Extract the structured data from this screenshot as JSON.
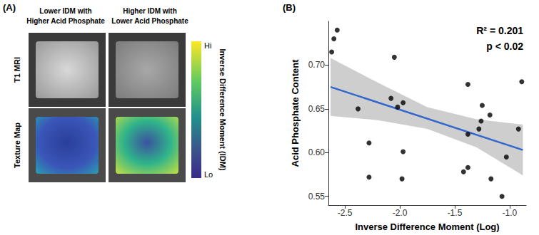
{
  "panel_a": {
    "label": "(A)",
    "columns": [
      [
        "Lower IDM with",
        "Higher Acid Phosphate"
      ],
      [
        "Higher IDM with",
        "Lower Acid Phosphate"
      ]
    ],
    "rows": [
      "T1 MRI",
      "Texture Map"
    ],
    "colorbar": {
      "title": "Inverse Difference Moment (IDM)",
      "high": "Hi",
      "low": "Lo"
    }
  },
  "chart_data": {
    "type": "scatter",
    "panel_label": "(B)",
    "x_label": "Inverse Difference Moment (Log)",
    "y_label": "Acid Phosphate Content",
    "annotations": [
      "R² = 0.201",
      "p < 0.02"
    ],
    "xlim": [
      -2.65,
      -0.85
    ],
    "xticks": [
      -2.5,
      {
        "value": -2,
        "label": "-2.0"
      },
      -1.5,
      {
        "value": -1,
        "label": "-1.0"
      }
    ],
    "ylim": [
      0.54,
      0.75
    ],
    "yticks": [
      0.55,
      {
        "value": 0.6,
        "label": "0.60"
      },
      0.65,
      {
        "value": 0.7,
        "label": "0.70"
      }
    ],
    "grid": false,
    "series": [
      {
        "type": "scatter",
        "color": "#000000",
        "marker": "circle",
        "x": [
          -2.62,
          -2.6,
          -2.57,
          -2.38,
          -2.28,
          -2.28,
          -2.05,
          -2.08,
          -2.02,
          -1.97,
          -1.97,
          -1.98,
          -1.38,
          -1.38,
          -1.38,
          -1.42,
          -1.28,
          -1.26,
          -1.25,
          -1.18,
          -1.17,
          -1.07,
          -1.03,
          -0.92,
          -0.89
        ],
        "values": [
          0.715,
          0.73,
          0.74,
          0.65,
          0.611,
          0.572,
          0.709,
          0.662,
          0.652,
          0.657,
          0.601,
          0.57,
          0.678,
          0.621,
          0.583,
          0.578,
          0.627,
          0.636,
          0.654,
          0.643,
          0.57,
          0.55,
          0.595,
          0.627,
          0.681
        ]
      },
      {
        "type": "line",
        "color": "#3366cc",
        "line_style": "solid",
        "x": [
          -2.63,
          -0.88
        ],
        "values": [
          0.675,
          0.603
        ]
      }
    ],
    "confidence_band": {
      "color": "#bdbdbd",
      "x": [
        -2.63,
        -2.2,
        -1.75,
        -1.3,
        -0.88
      ],
      "lower": [
        0.642,
        0.637,
        0.627,
        0.606,
        0.574
      ],
      "upper": [
        0.708,
        0.68,
        0.652,
        0.638,
        0.632
      ]
    }
  }
}
